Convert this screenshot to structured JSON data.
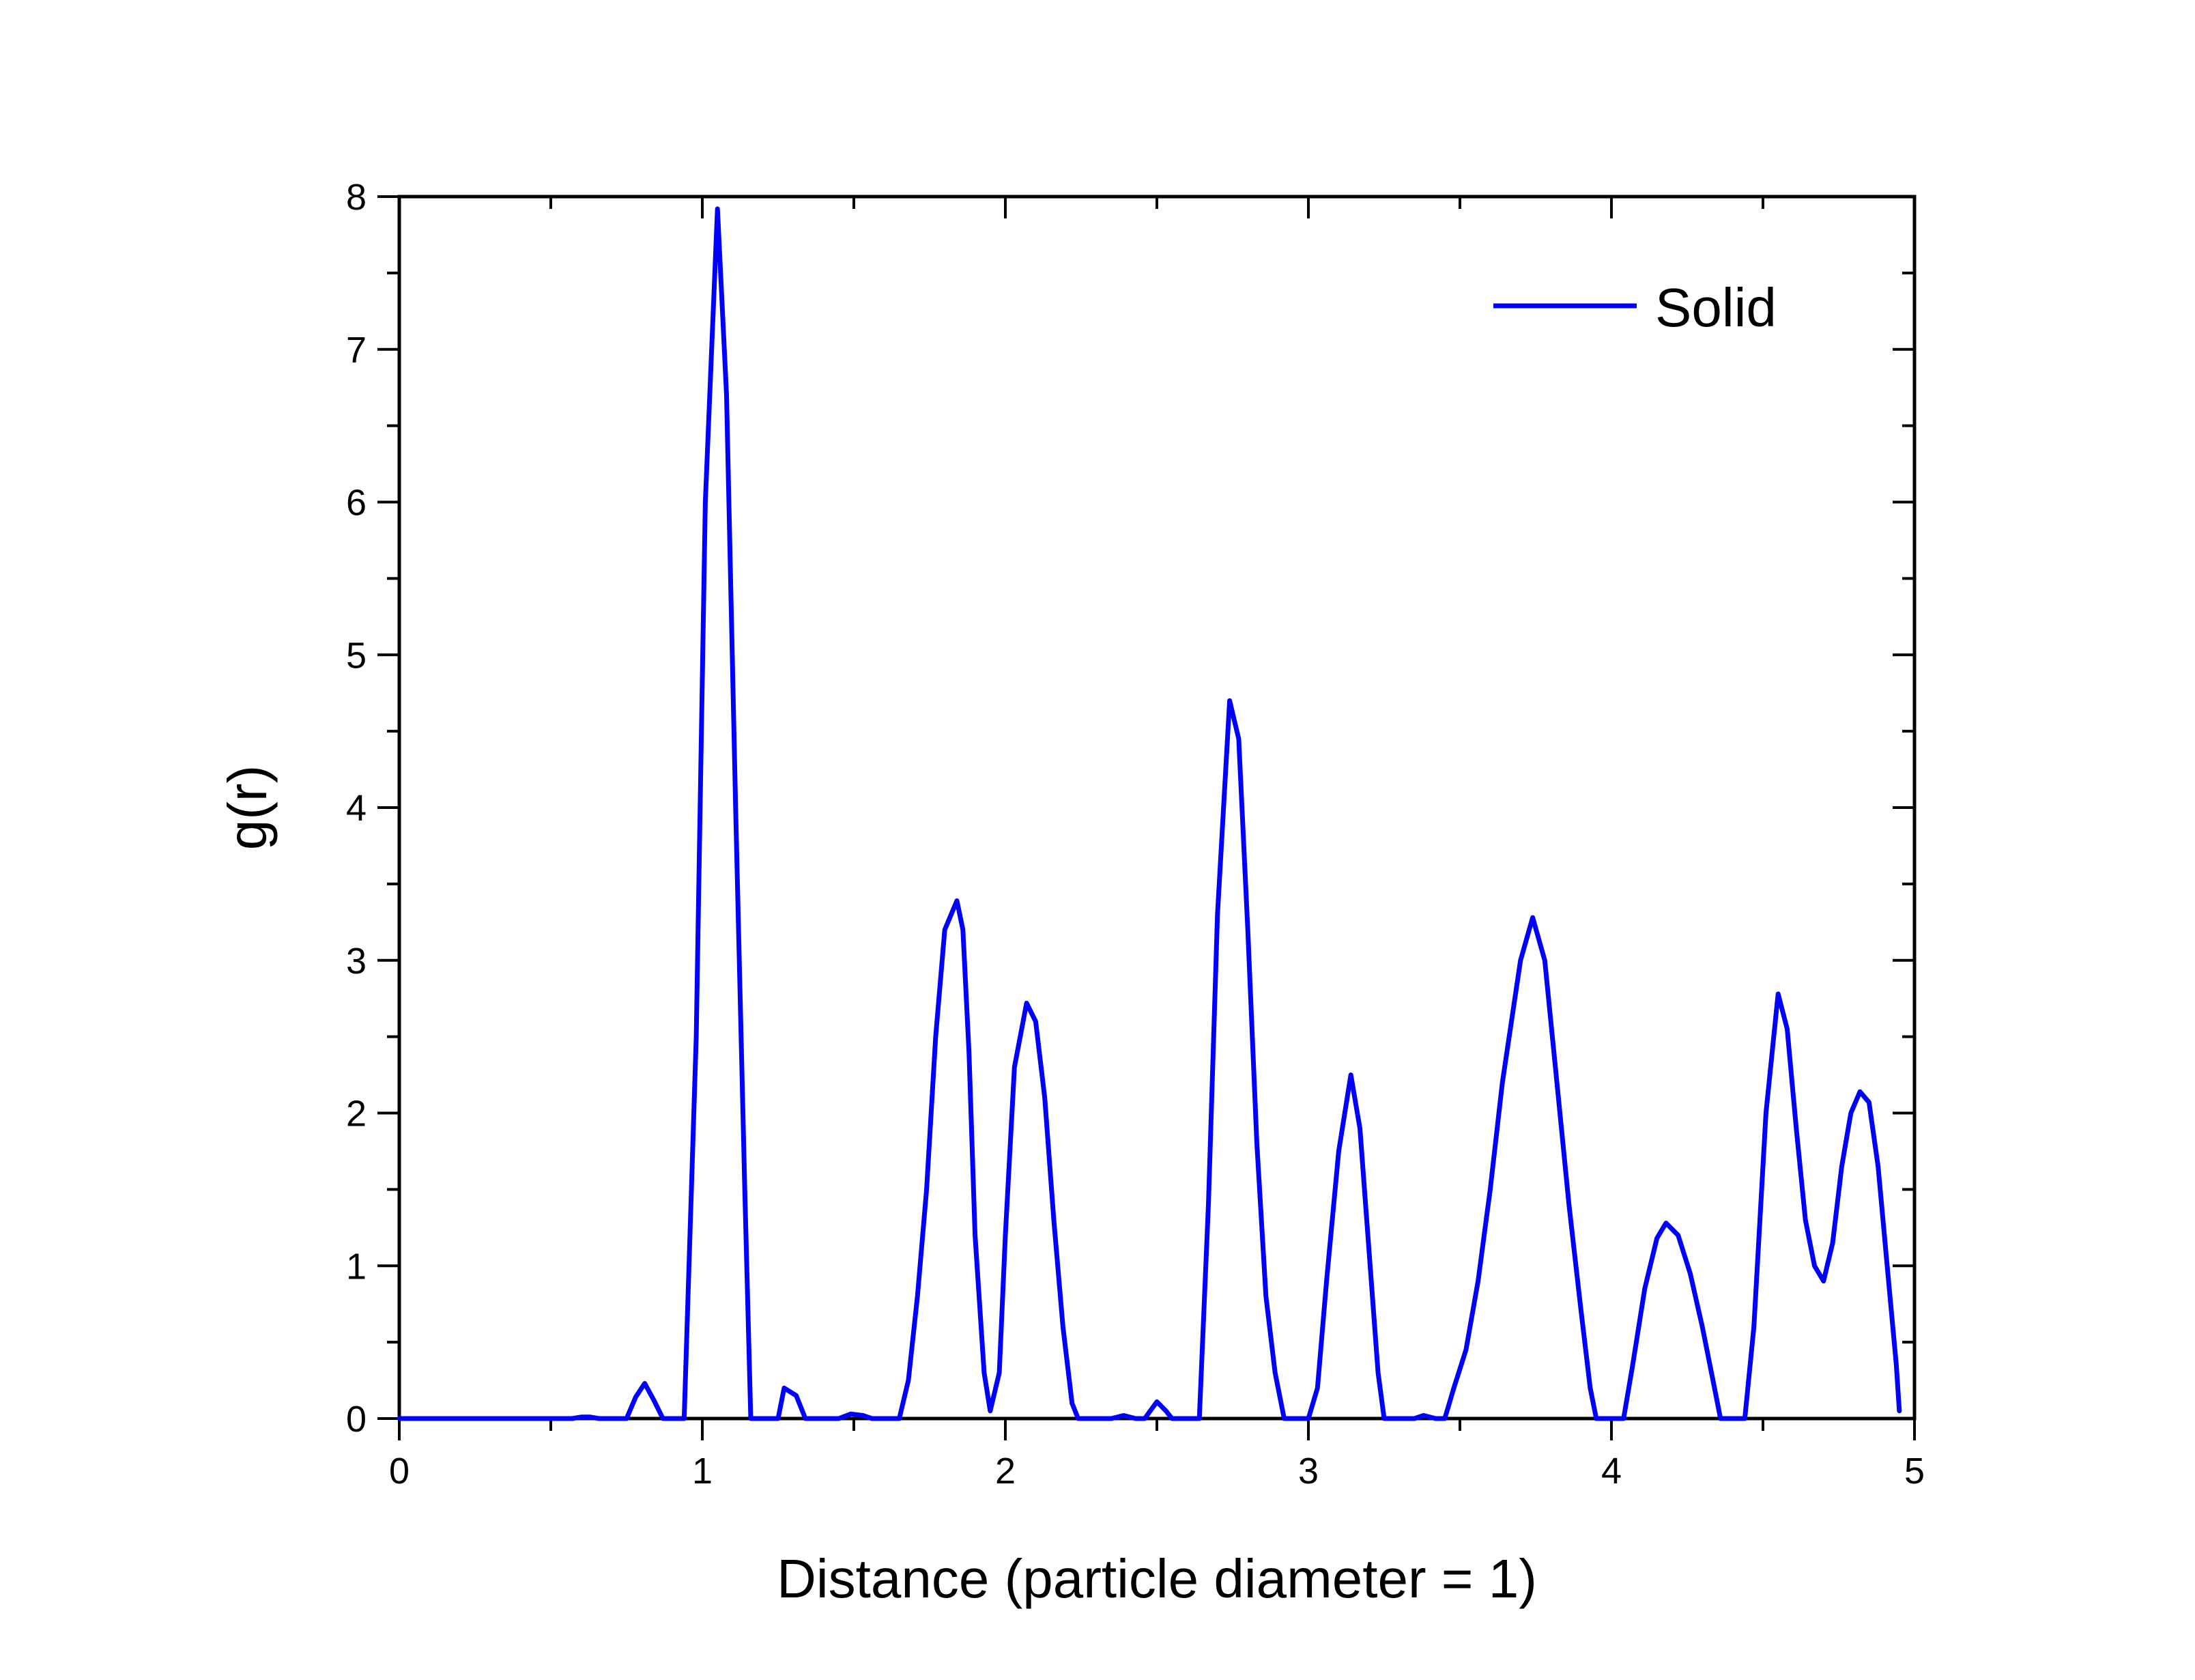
{
  "chart_data": {
    "type": "line",
    "title": "",
    "xlabel": "Distance (particle diameter = 1)",
    "ylabel": "g(r)",
    "xlim": [
      0,
      5
    ],
    "ylim": [
      0,
      8
    ],
    "x_ticks": [
      0,
      1,
      2,
      3,
      4,
      5
    ],
    "y_ticks": [
      0,
      1,
      2,
      3,
      4,
      5,
      6,
      7,
      8
    ],
    "x_tick_labels": [
      "0",
      "1",
      "2",
      "3",
      "4",
      "5"
    ],
    "y_tick_labels": [
      "0",
      "1",
      "2",
      "3",
      "4",
      "5",
      "6",
      "7",
      "8"
    ],
    "grid": false,
    "legend_position": "top-right",
    "series": [
      {
        "name": "Solid",
        "color": "#0000ff",
        "points": [
          [
            0.0,
            0.0
          ],
          [
            0.5,
            0.0
          ],
          [
            0.57,
            0.0
          ],
          [
            0.6,
            0.01
          ],
          [
            0.63,
            0.01
          ],
          [
            0.66,
            0.0
          ],
          [
            0.75,
            0.0
          ],
          [
            0.78,
            0.14
          ],
          [
            0.81,
            0.23
          ],
          [
            0.84,
            0.12
          ],
          [
            0.87,
            0.0
          ],
          [
            0.94,
            0.0
          ],
          [
            0.98,
            2.5
          ],
          [
            1.01,
            6.0
          ],
          [
            1.05,
            7.92
          ],
          [
            1.08,
            6.7
          ],
          [
            1.11,
            4.0
          ],
          [
            1.14,
            1.5
          ],
          [
            1.16,
            0.0
          ],
          [
            1.25,
            0.0
          ],
          [
            1.27,
            0.2
          ],
          [
            1.31,
            0.15
          ],
          [
            1.34,
            0.0
          ],
          [
            1.45,
            0.0
          ],
          [
            1.49,
            0.03
          ],
          [
            1.53,
            0.02
          ],
          [
            1.56,
            0.0
          ],
          [
            1.65,
            0.0
          ],
          [
            1.68,
            0.25
          ],
          [
            1.71,
            0.8
          ],
          [
            1.74,
            1.5
          ],
          [
            1.77,
            2.5
          ],
          [
            1.8,
            3.2
          ],
          [
            1.84,
            3.39
          ],
          [
            1.86,
            3.2
          ],
          [
            1.88,
            2.4
          ],
          [
            1.9,
            1.2
          ],
          [
            1.93,
            0.3
          ],
          [
            1.95,
            0.05
          ],
          [
            1.98,
            0.3
          ],
          [
            2.0,
            1.2
          ],
          [
            2.03,
            2.3
          ],
          [
            2.07,
            2.72
          ],
          [
            2.1,
            2.6
          ],
          [
            2.13,
            2.1
          ],
          [
            2.16,
            1.3
          ],
          [
            2.19,
            0.6
          ],
          [
            2.22,
            0.1
          ],
          [
            2.24,
            0.0
          ],
          [
            2.35,
            0.0
          ],
          [
            2.39,
            0.02
          ],
          [
            2.43,
            0.0
          ],
          [
            2.46,
            0.0
          ],
          [
            2.5,
            0.11
          ],
          [
            2.53,
            0.05
          ],
          [
            2.55,
            0.0
          ],
          [
            2.64,
            0.0
          ],
          [
            2.67,
            1.4
          ],
          [
            2.7,
            3.3
          ],
          [
            2.74,
            4.7
          ],
          [
            2.77,
            4.45
          ],
          [
            2.8,
            3.2
          ],
          [
            2.83,
            1.8
          ],
          [
            2.86,
            0.8
          ],
          [
            2.89,
            0.3
          ],
          [
            2.92,
            0.0
          ],
          [
            3.0,
            0.0
          ],
          [
            3.03,
            0.2
          ],
          [
            3.06,
            0.9
          ],
          [
            3.1,
            1.75
          ],
          [
            3.14,
            2.25
          ],
          [
            3.17,
            1.9
          ],
          [
            3.2,
            1.1
          ],
          [
            3.23,
            0.3
          ],
          [
            3.25,
            0.0
          ],
          [
            3.35,
            0.0
          ],
          [
            3.38,
            0.02
          ],
          [
            3.42,
            0.0
          ],
          [
            3.45,
            0.0
          ],
          [
            3.48,
            0.2
          ],
          [
            3.52,
            0.45
          ],
          [
            3.56,
            0.9
          ],
          [
            3.6,
            1.5
          ],
          [
            3.64,
            2.2
          ],
          [
            3.67,
            2.6
          ],
          [
            3.7,
            3.0
          ],
          [
            3.74,
            3.28
          ],
          [
            3.78,
            3.0
          ],
          [
            3.82,
            2.2
          ],
          [
            3.86,
            1.4
          ],
          [
            3.9,
            0.7
          ],
          [
            3.93,
            0.2
          ],
          [
            3.95,
            0.0
          ],
          [
            4.04,
            0.0
          ],
          [
            4.07,
            0.35
          ],
          [
            4.11,
            0.85
          ],
          [
            4.15,
            1.18
          ],
          [
            4.18,
            1.28
          ],
          [
            4.22,
            1.2
          ],
          [
            4.26,
            0.95
          ],
          [
            4.3,
            0.6
          ],
          [
            4.34,
            0.2
          ],
          [
            4.36,
            0.0
          ],
          [
            4.44,
            0.0
          ],
          [
            4.47,
            0.6
          ],
          [
            4.51,
            2.0
          ],
          [
            4.55,
            2.78
          ],
          [
            4.58,
            2.55
          ],
          [
            4.61,
            1.9
          ],
          [
            4.64,
            1.3
          ],
          [
            4.67,
            1.0
          ],
          [
            4.7,
            0.9
          ],
          [
            4.73,
            1.15
          ],
          [
            4.76,
            1.65
          ],
          [
            4.79,
            2.0
          ],
          [
            4.82,
            2.14
          ],
          [
            4.85,
            2.07
          ],
          [
            4.88,
            1.65
          ],
          [
            4.91,
            1.0
          ],
          [
            4.94,
            0.35
          ],
          [
            4.95,
            0.05
          ]
        ]
      }
    ]
  }
}
